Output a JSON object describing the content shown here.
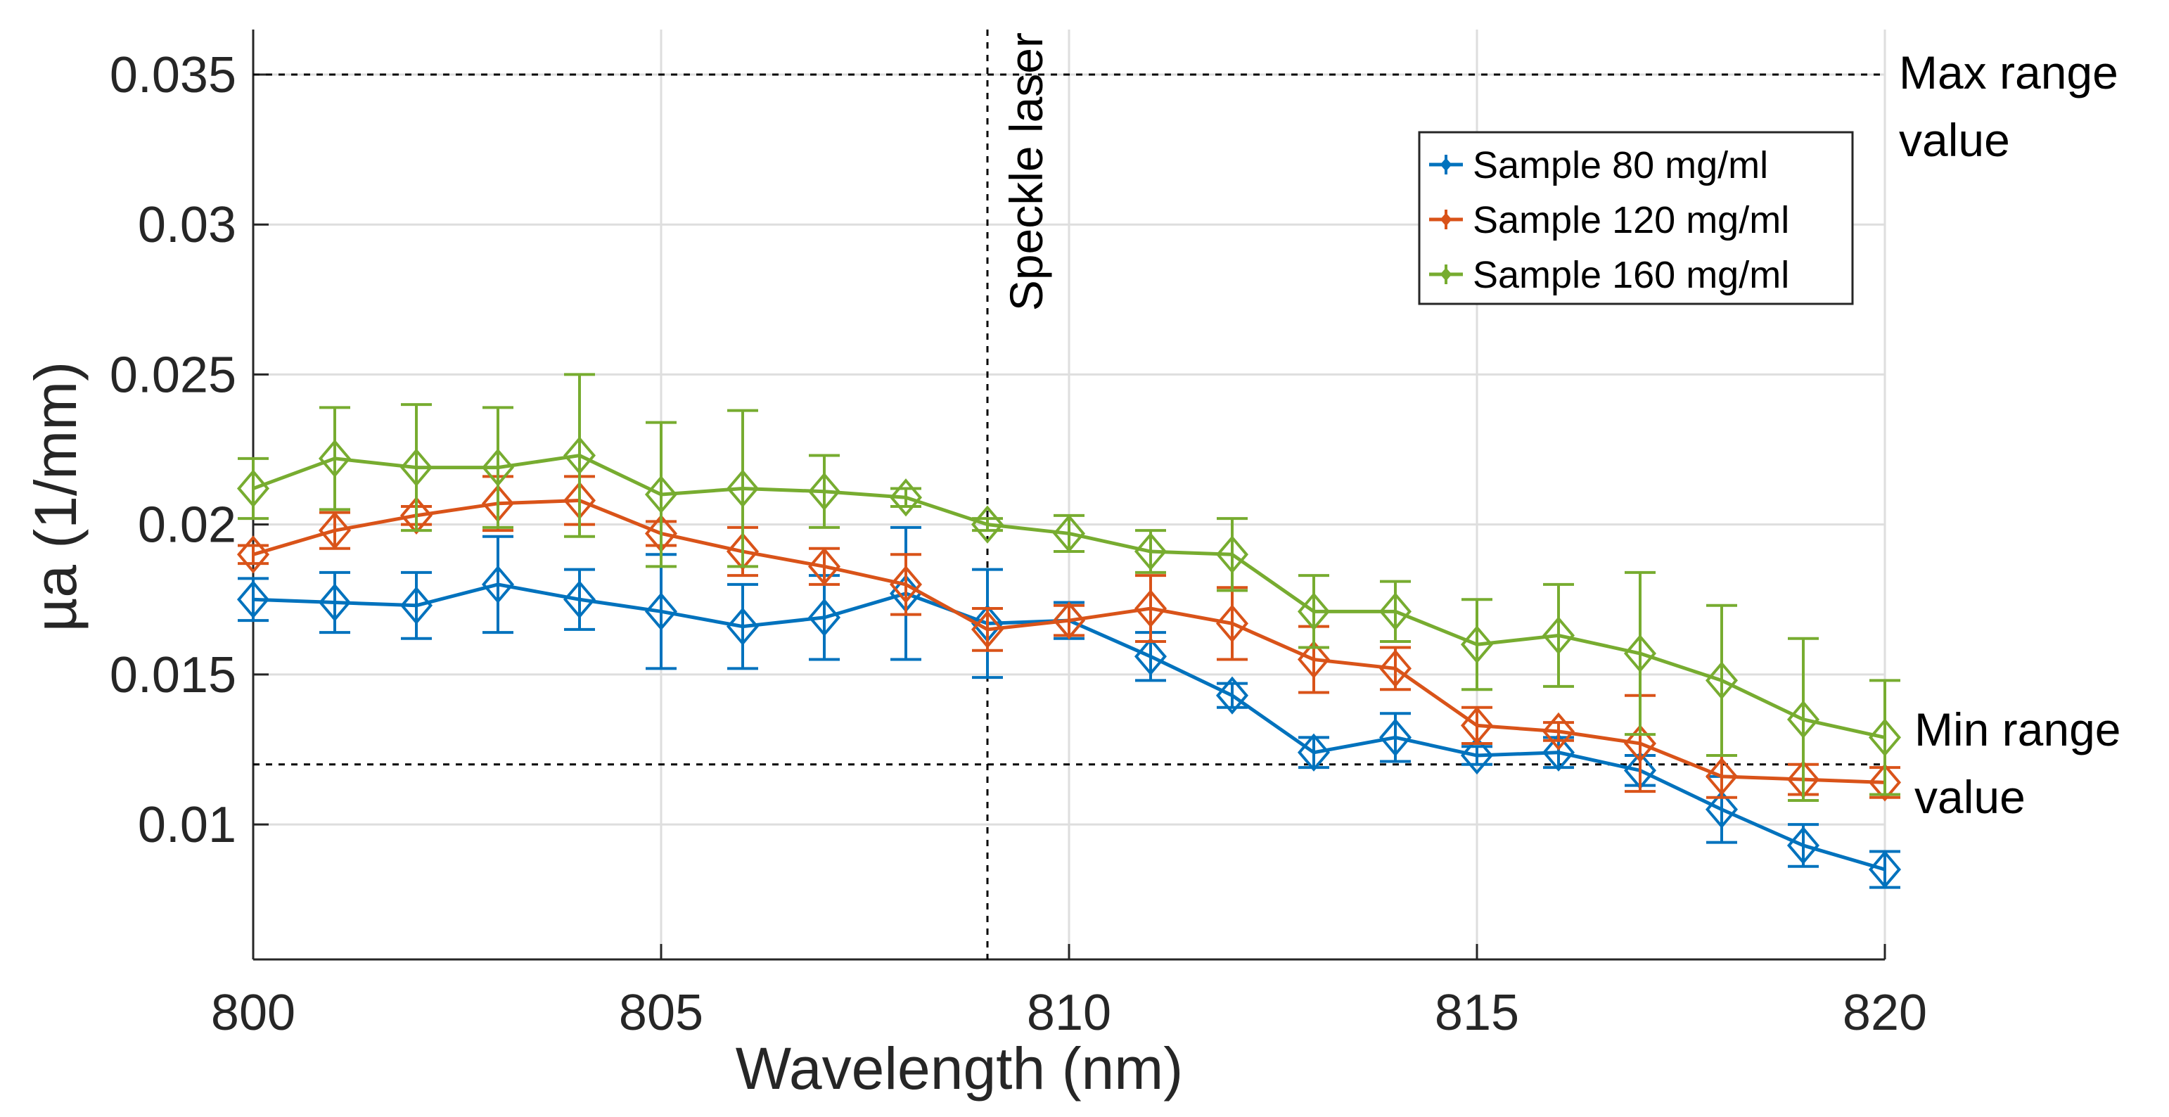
{
  "chart_data": {
    "type": "line",
    "xlabel": "Wavelength (nm)",
    "ylabel": "µa (1/mm)",
    "xlim": [
      800,
      820
    ],
    "ylim": [
      0.0055,
      0.0365
    ],
    "xticks": [
      800,
      805,
      810,
      815,
      820
    ],
    "xtick_labels": [
      "800",
      "805",
      "810",
      "815",
      "820"
    ],
    "yticks": [
      0.01,
      0.015,
      0.02,
      0.025,
      0.03,
      0.035
    ],
    "ytick_labels": [
      "0.01",
      "0.015",
      "0.02",
      "0.025",
      "0.03",
      "0.035"
    ],
    "grid": true,
    "legend_position": "top-right",
    "x": [
      800,
      801,
      802,
      803,
      804,
      805,
      806,
      807,
      808,
      809,
      810,
      811,
      812,
      813,
      814,
      815,
      816,
      817,
      818,
      819,
      820
    ],
    "series": [
      {
        "name": "Sample 80 mg/ml",
        "color": "#0072BD",
        "values": [
          0.0175,
          0.0174,
          0.0173,
          0.018,
          0.0175,
          0.0171,
          0.0166,
          0.0169,
          0.0177,
          0.0167,
          0.0168,
          0.0156,
          0.0143,
          0.0124,
          0.0129,
          0.0123,
          0.0124,
          0.0118,
          0.0105,
          0.0093,
          0.0085
        ],
        "errors": [
          0.0007,
          0.001,
          0.0011,
          0.0016,
          0.001,
          0.0019,
          0.0014,
          0.0014,
          0.0022,
          0.0018,
          0.0006,
          0.0008,
          0.0004,
          0.0005,
          0.0008,
          0.0003,
          0.0005,
          0.0005,
          0.0011,
          0.0007,
          0.0006
        ]
      },
      {
        "name": "Sample 120 mg/ml",
        "color": "#D95319",
        "values": [
          0.019,
          0.0198,
          0.0203,
          0.0207,
          0.0208,
          0.0197,
          0.0191,
          0.0186,
          0.018,
          0.0165,
          0.0168,
          0.0172,
          0.0167,
          0.0155,
          0.0152,
          0.0133,
          0.0131,
          0.0127,
          0.0116,
          0.0115,
          0.0114
        ],
        "errors": [
          0.0003,
          0.0006,
          0.0003,
          0.0009,
          0.0008,
          0.0004,
          0.0008,
          0.0006,
          0.001,
          0.0007,
          0.0005,
          0.0011,
          0.0012,
          0.0011,
          0.0007,
          0.0006,
          0.0003,
          0.0016,
          0.0007,
          0.0005,
          0.0005
        ]
      },
      {
        "name": "Sample 160 mg/ml",
        "color": "#77AC30",
        "values": [
          0.0212,
          0.0222,
          0.0219,
          0.0219,
          0.0223,
          0.021,
          0.0212,
          0.0211,
          0.0209,
          0.02,
          0.0197,
          0.0191,
          0.019,
          0.0171,
          0.0171,
          0.016,
          0.0163,
          0.0157,
          0.0148,
          0.0135,
          0.0129
        ],
        "errors": [
          0.001,
          0.0017,
          0.0021,
          0.002,
          0.0027,
          0.0024,
          0.0026,
          0.0012,
          0.0003,
          0.0002,
          0.0006,
          0.0007,
          0.0012,
          0.0012,
          0.001,
          0.0015,
          0.0017,
          0.0027,
          0.0025,
          0.0027,
          0.0019
        ]
      }
    ],
    "reference_lines": [
      {
        "orientation": "horizontal",
        "value": 0.035,
        "label_line1": "Max range",
        "label_line2": "value"
      },
      {
        "orientation": "horizontal",
        "value": 0.012,
        "label_line1": "Min range",
        "label_line2": "value"
      },
      {
        "orientation": "vertical",
        "value": 809,
        "label": "Speckle laser"
      }
    ]
  }
}
